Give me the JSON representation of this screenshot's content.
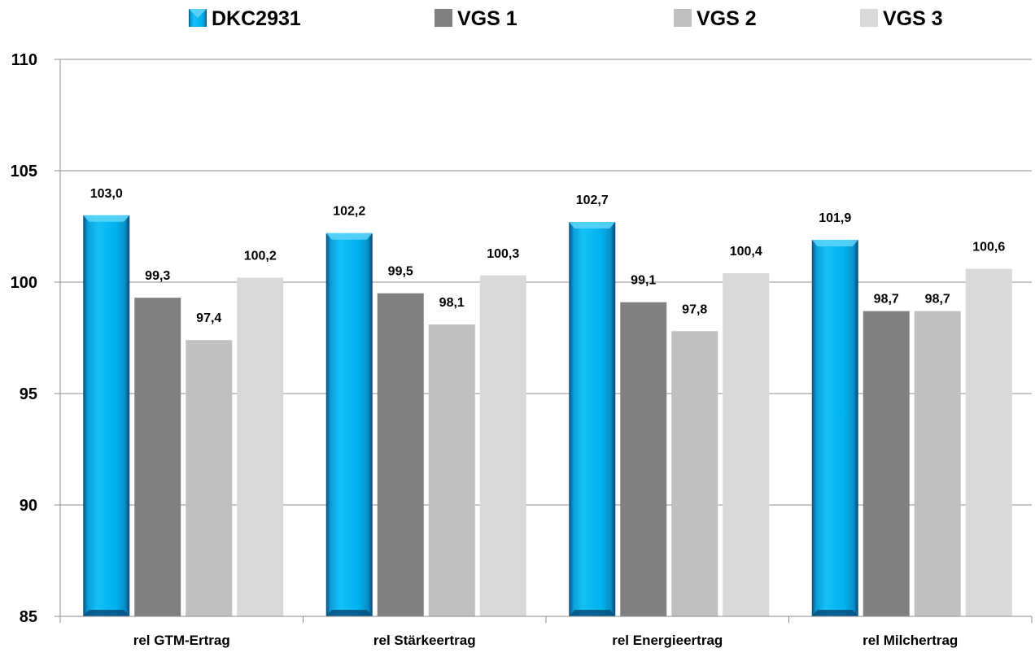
{
  "chart_data": {
    "type": "bar",
    "categories": [
      "rel GTM-Ertrag",
      "rel Stärkeertrag",
      "rel Energieertrag",
      "rel Milchertrag"
    ],
    "series": [
      {
        "name": "DKC2931",
        "values": [
          103.0,
          102.2,
          102.7,
          101.9
        ],
        "labels": [
          "103,0",
          "102,2",
          "102,7",
          "101,9"
        ],
        "color": "#00b4f0"
      },
      {
        "name": "VGS 1",
        "values": [
          99.3,
          99.5,
          99.1,
          98.7
        ],
        "labels": [
          "99,3",
          "99,5",
          "99,1",
          "98,7"
        ],
        "color": "#808080"
      },
      {
        "name": "VGS 2",
        "values": [
          97.4,
          98.1,
          97.8,
          98.7
        ],
        "labels": [
          "97,4",
          "98,1",
          "97,8",
          "98,7"
        ],
        "color": "#c0c0c0"
      },
      {
        "name": "VGS 3",
        "values": [
          100.2,
          100.3,
          100.4,
          100.6
        ],
        "labels": [
          "100,2",
          "100,3",
          "100,4",
          "100,6"
        ],
        "color": "#d9d9d9"
      }
    ],
    "yticks": [
      "85",
      "90",
      "95",
      "100",
      "105",
      "110"
    ],
    "ylim": [
      85,
      110
    ],
    "grid": true,
    "legend_position": "top"
  }
}
